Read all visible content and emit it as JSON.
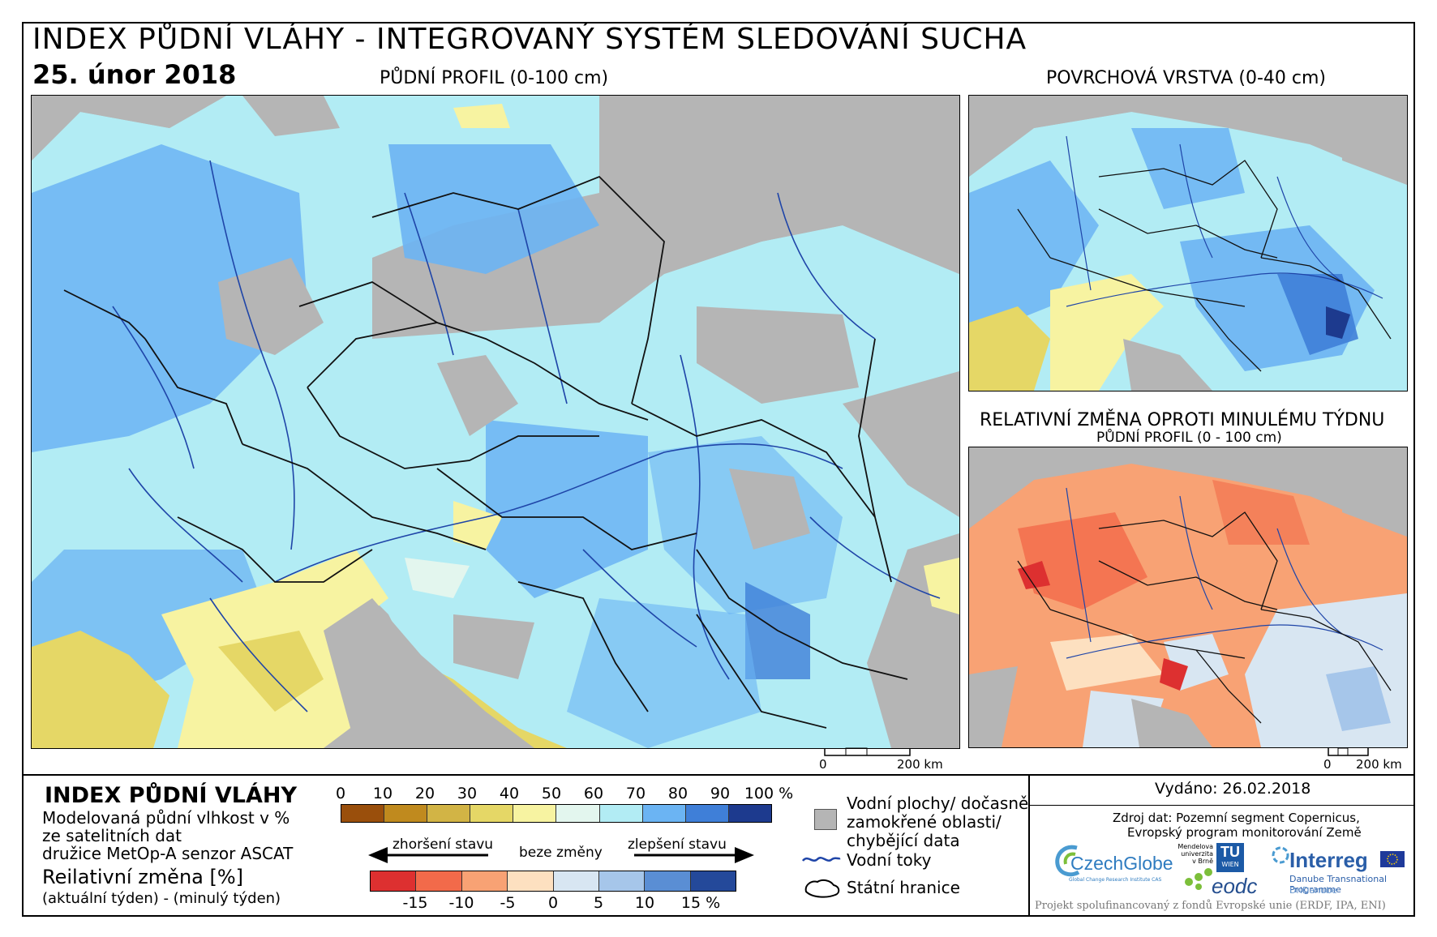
{
  "header": {
    "title": "INDEX PŮDNÍ VLÁHY - INTEGROVANÝ SYSTÉM SLEDOVÁNÍ SUCHA",
    "date": "25. únor 2018"
  },
  "maps": {
    "main_label": "PŮDNÍ PROFIL (0-100 cm)",
    "surface_label": "POVRCHOVÁ VRSTVA (0-40 cm)",
    "change_label": "RELATIVNÍ ZMĚNA OPROTI MINULÉMU TÝDNU",
    "change_sublabel": "PŮDNÍ PROFIL (0 - 100 cm)",
    "scale_zero": "0",
    "scale_km": "200 km"
  },
  "legend": {
    "title": "INDEX PŮDNÍ VLÁHY",
    "desc_line1": "Modelovaná půdní vlhkost v %",
    "desc_line2": "ze satelitních dat",
    "desc_line3": "družice MetOp-A senzor ASCAT",
    "change_title": "Reilativní změna [%]",
    "change_desc": "(aktuální týden) - (minulý týden)",
    "index_ticks": [
      "0",
      "10",
      "20",
      "30",
      "40",
      "50",
      "60",
      "70",
      "80",
      "90",
      "100 %"
    ],
    "index_colors": [
      "#9a4f0c",
      "#c08a1e",
      "#d2b445",
      "#e5d766",
      "#f7f3a1",
      "#e3f6ee",
      "#b2ecf4",
      "#6bb4f3",
      "#3f7fd8",
      "#1d3a8e"
    ],
    "worse_label": "zhoršení stavu",
    "nochange_label": "beze změny",
    "better_label": "zlepšení stavu",
    "change_ticks": [
      "-15",
      "-10",
      "-5",
      "0",
      "5",
      "10",
      "15 %"
    ],
    "change_colors": [
      "#dd3030",
      "#f26a4a",
      "#f8a274",
      "#fde0c0",
      "#d8e6f2",
      "#a6c6ea",
      "#5a8ed4",
      "#24499a"
    ],
    "water_label_line1": "Vodní plochy/ dočasně",
    "water_label_line2": "zamokřené oblasti/",
    "water_label_line3": "chybějící data",
    "rivers_label": "Vodní toky",
    "borders_label": "Státní hranice"
  },
  "info": {
    "issued": "Vydáno: 26.02.2018",
    "source_line1": "Zdroj dat: Pozemní segment Copernicus,",
    "source_line2": "Evropský program monitorování Země",
    "czechglobe": "CzechGlobe",
    "czechglobe_sub": "Global Change Research Institute CAS",
    "mendel_line1": "Mendelova",
    "mendel_line2": "univerzita",
    "mendel_line3": "v Brně",
    "tu": "TU",
    "tu_sub": "WIEN",
    "eodc": "eodc",
    "interreg": "Interreg",
    "danube": "Danube Transnational Programme",
    "dridanube": "DriDanube",
    "footer": "Projekt spolufinancovaný z fondů Evropské unie (ERDF, IPA, ENI)"
  },
  "colors": {
    "no_data": "#b5b5b5",
    "river": "#1f45a8",
    "border": "#111111"
  }
}
